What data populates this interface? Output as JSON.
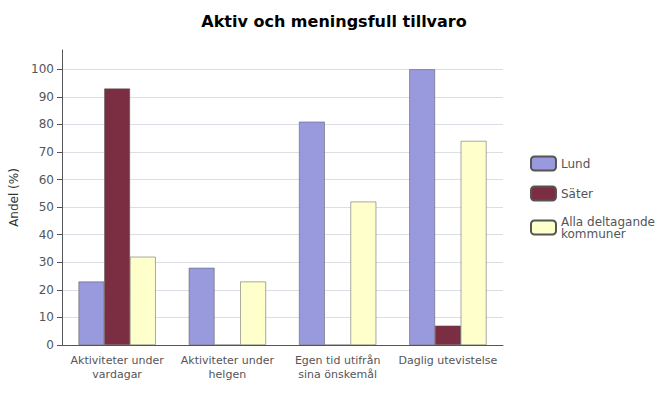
{
  "chart_data": {
    "type": "bar",
    "title": "Aktiv och meningsfull tillvaro",
    "categories": [
      "Aktiviteter under\nvardagar",
      "Aktiviteter under\nhelgen",
      "Egen tid utifrån\nsina önskemål",
      "Daglig utevistelse"
    ],
    "series": [
      {
        "name": "Lund",
        "color": "#9999DD",
        "values": [
          23,
          28,
          81,
          100
        ]
      },
      {
        "name": "Säter",
        "color": "#7B2D42",
        "values": [
          93,
          0,
          0,
          7
        ]
      },
      {
        "name": "Alla deltagande\nkommuner",
        "color": "#FFFFCC",
        "values": [
          32,
          23,
          52,
          74
        ]
      }
    ],
    "ylabel": "Andel (%)",
    "ylim": [
      0,
      107
    ],
    "yticks": [
      0,
      10,
      20,
      30,
      40,
      50,
      60,
      70,
      80,
      90,
      100
    ],
    "grid": true,
    "legend": "right"
  }
}
